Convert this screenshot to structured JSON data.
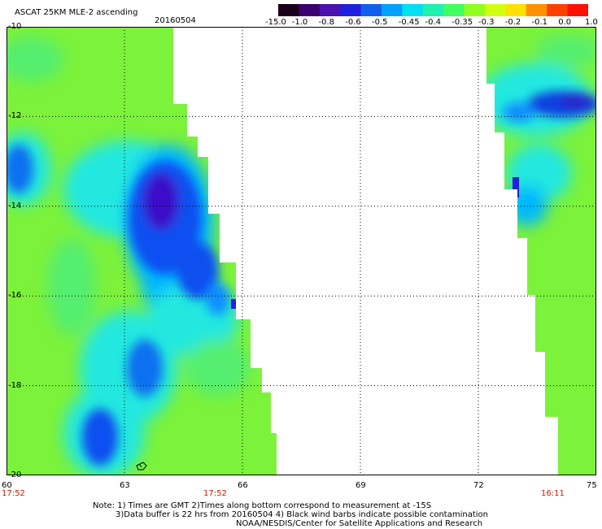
{
  "title": "ASCAT 25KM MLE-2 ascending",
  "date": "20160504",
  "colorbar": {
    "labels": [
      "-15.0",
      "-1.0",
      "-0.8",
      "-0.6",
      "-0.5",
      "-0.45",
      "-0.4",
      "-0.35",
      "-0.3",
      "-0.2",
      "-0.1",
      "0.0",
      "1.0"
    ],
    "colors": [
      "#1a0018",
      "#3a0070",
      "#4a10b0",
      "#2020e0",
      "#1060f0",
      "#00a0ff",
      "#00e0f0",
      "#20f0b0",
      "#40ff60",
      "#90ff20",
      "#d0ff10",
      "#ffe000",
      "#ff9000",
      "#ff4000",
      "#ff1000"
    ]
  },
  "map": {
    "lon_ticks": [
      "60",
      "63",
      "66",
      "69",
      "72",
      "75"
    ],
    "lat_ticks": [
      "-10",
      "-12",
      "-14",
      "-16",
      "-18",
      "-20"
    ],
    "pass_times": [
      "17:52",
      "17:52",
      "16:11"
    ]
  },
  "notes": {
    "line1": "Note: 1) Times are GMT 2)Times along bottom correspond to measurement at -15S",
    "line2": "3)Data buffer is 22 hrs from 20160504 4) Black wind barbs indicate possible contamination",
    "line3": "NOAA/NESDIS/Center for Satellite Applications and Research"
  }
}
